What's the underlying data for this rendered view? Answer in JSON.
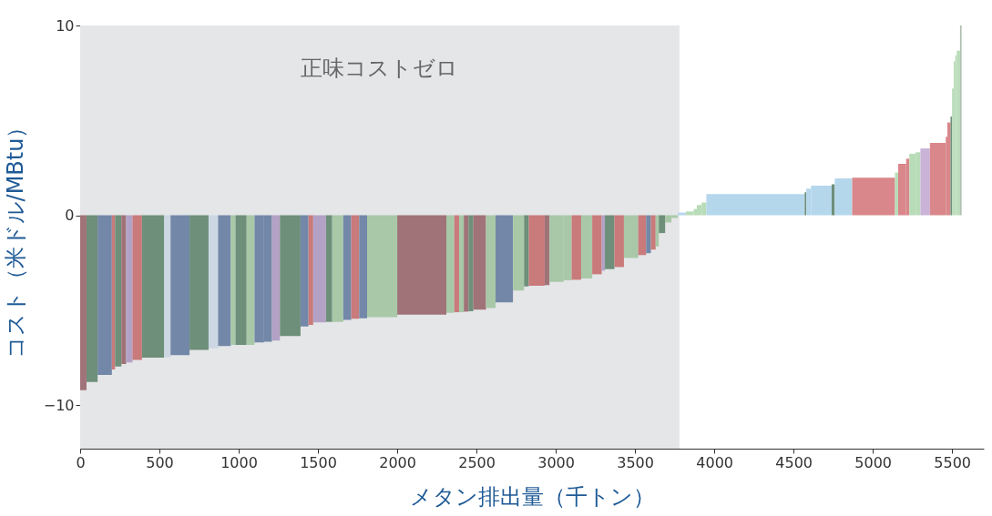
{
  "chart_data": {
    "type": "histogram",
    "xlabel": "メタン排出量（千トン）",
    "ylabel": "コスト（米ドル/MBtu）",
    "bins": [
      0,
      40,
      110,
      200,
      220,
      260,
      290,
      330,
      390,
      530,
      570,
      690,
      810,
      870,
      950,
      980,
      1050,
      1100,
      1160,
      1210,
      1260,
      1390,
      1440,
      1470,
      1550,
      1590,
      1660,
      1710,
      1760,
      1810,
      2000,
      2310,
      2360,
      2390,
      2420,
      2450,
      2480,
      2560,
      2620,
      2730,
      2800,
      2830,
      2930,
      2960,
      3050,
      3100,
      3160,
      3230,
      3290,
      3310,
      3370,
      3430,
      3520,
      3570,
      3600,
      3630,
      3650,
      3690,
      3730,
      3770,
      3820,
      3870,
      3890,
      3920,
      3950,
      4570,
      4580,
      4610,
      4740,
      4760,
      4870,
      5140,
      5160,
      5210,
      5230,
      5270,
      5300,
      5360,
      5460,
      5470,
      5490,
      5500,
      5510,
      5520,
      5530,
      5550,
      5560
    ],
    "values": [
      -9.22,
      -8.79,
      -8.41,
      -8.13,
      -7.97,
      -7.84,
      -7.76,
      -7.63,
      -7.51,
      -7.49,
      -7.37,
      -7.1,
      -7.01,
      -6.89,
      -6.83,
      -6.83,
      -6.83,
      -6.7,
      -6.67,
      -6.6,
      -6.37,
      -5.86,
      -5.78,
      -5.65,
      -5.62,
      -5.62,
      -5.52,
      -5.46,
      -5.43,
      -5.37,
      -5.24,
      -5.14,
      -5.11,
      -5.11,
      -5.08,
      -5.06,
      -4.98,
      -4.89,
      -4.59,
      -3.97,
      -3.75,
      -3.71,
      -3.68,
      -3.51,
      -3.43,
      -3.4,
      -3.33,
      -3.11,
      -2.92,
      -2.84,
      -2.73,
      -2.25,
      -2.1,
      -2.0,
      -1.81,
      -1.65,
      -0.94,
      -0.38,
      -0.14,
      0.14,
      0.2,
      0.33,
      0.54,
      0.67,
      1.11,
      1.21,
      1.4,
      1.56,
      1.63,
      1.94,
      1.98,
      2.25,
      2.71,
      2.98,
      3.24,
      3.32,
      3.52,
      3.81,
      4.14,
      4.89,
      5.2,
      6.68,
      8.11,
      8.43,
      8.67,
      10.0
    ],
    "colors": [
      "#a07378",
      "#6e8f7a",
      "#7388a8",
      "#c97a7a",
      "#6e8f7a",
      "#a07378",
      "#b3a2c6",
      "#c97a7a",
      "#6e8f7a",
      "#ccd7e3",
      "#7388a8",
      "#6e8f7a",
      "#ccd7e3",
      "#7388a8",
      "#a8c8a8",
      "#6e8f7a",
      "#a8c8a8",
      "#7388a8",
      "#7388a8",
      "#b3a2c6",
      "#6e8f7a",
      "#7388a8",
      "#c97a7a",
      "#b3a2c6",
      "#6e8f7a",
      "#a8c8a8",
      "#7388a8",
      "#c97a7a",
      "#7388a8",
      "#a8c8a8",
      "#a07378",
      "#a8c8a8",
      "#c97a7a",
      "#a8c8a8",
      "#a07378",
      "#6e8f7a",
      "#a07378",
      "#a8c8a8",
      "#7388a8",
      "#a8c8a8",
      "#6e8f7a",
      "#c97a7a",
      "#a07378",
      "#a8c8a8",
      "#a8c8a8",
      "#c97a7a",
      "#a8c8a8",
      "#c97a7a",
      "#b3a2c6",
      "#6e8f7a",
      "#c97a7a",
      "#a8c8a8",
      "#c97a7a",
      "#7388a8",
      "#c97a7a",
      "#a8c8a8",
      "#6e8f7a",
      "#a8c8a8",
      "#a8c8a8",
      "#b5d7ec",
      "#b8dcb8",
      "#b8dcb8",
      "#b8dcb8",
      "#b8dcb8",
      "#b5d7ec",
      "#6e8f7a",
      "#b5d7ec",
      "#b5d7ec",
      "#6e8f7a",
      "#b5d7ec",
      "#d9878a",
      "#b8dcb8",
      "#d9878a",
      "#d9878a",
      "#b8dcb8",
      "#b8dcb8",
      "#c9b3d6",
      "#d9878a",
      "#d9878a",
      "#d9878a",
      "#6e8f7a",
      "#b8dcb8",
      "#b8dcb8",
      "#b8dcb8",
      "#b8dcb8",
      "#b0c0b0"
    ],
    "xlim": [
      0,
      5700
    ],
    "ylim": [
      -12.3,
      10
    ],
    "xticks": [
      0,
      500,
      1000,
      1500,
      2000,
      2500,
      3000,
      3500,
      4000,
      4500,
      5000,
      5500
    ],
    "yticks": [
      -10,
      0,
      10
    ],
    "bands": [
      {
        "axis": "x",
        "from": 0,
        "to": 3780,
        "label": "正味コストゼロ",
        "color": "#e5e6e8"
      }
    ],
    "grid": false
  }
}
